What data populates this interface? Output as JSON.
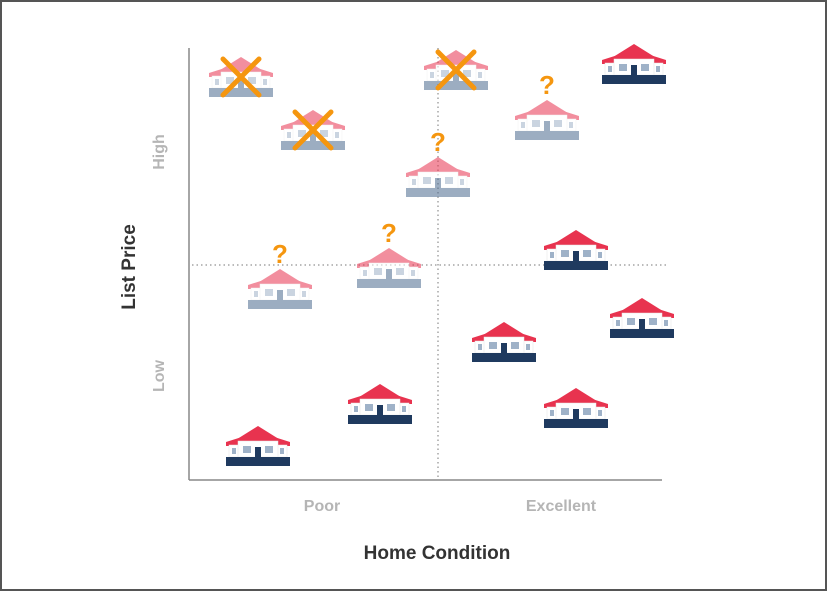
{
  "y_axis": {
    "title": "List Price",
    "high_label": "High",
    "low_label": "Low"
  },
  "x_axis": {
    "title": "Home Condition",
    "poor_label": "Poor",
    "excellent_label": "Excellent"
  },
  "colors": {
    "roof": "#e8334f",
    "base": "#1f3a5f",
    "mark": "#f5960f",
    "axis": "#888888",
    "label": "#b5b5b5"
  },
  "houses": [
    {
      "state": "normal"
    },
    {
      "state": "normal"
    },
    {
      "state": "normal"
    },
    {
      "state": "normal"
    },
    {
      "state": "normal"
    },
    {
      "state": "normal"
    },
    {
      "state": "normal"
    },
    {
      "state": "faded-crossed"
    },
    {
      "state": "faded-crossed"
    },
    {
      "state": "faded-crossed"
    },
    {
      "state": "faded-question"
    },
    {
      "state": "faded-question"
    },
    {
      "state": "faded-question"
    },
    {
      "state": "faded-question"
    }
  ]
}
